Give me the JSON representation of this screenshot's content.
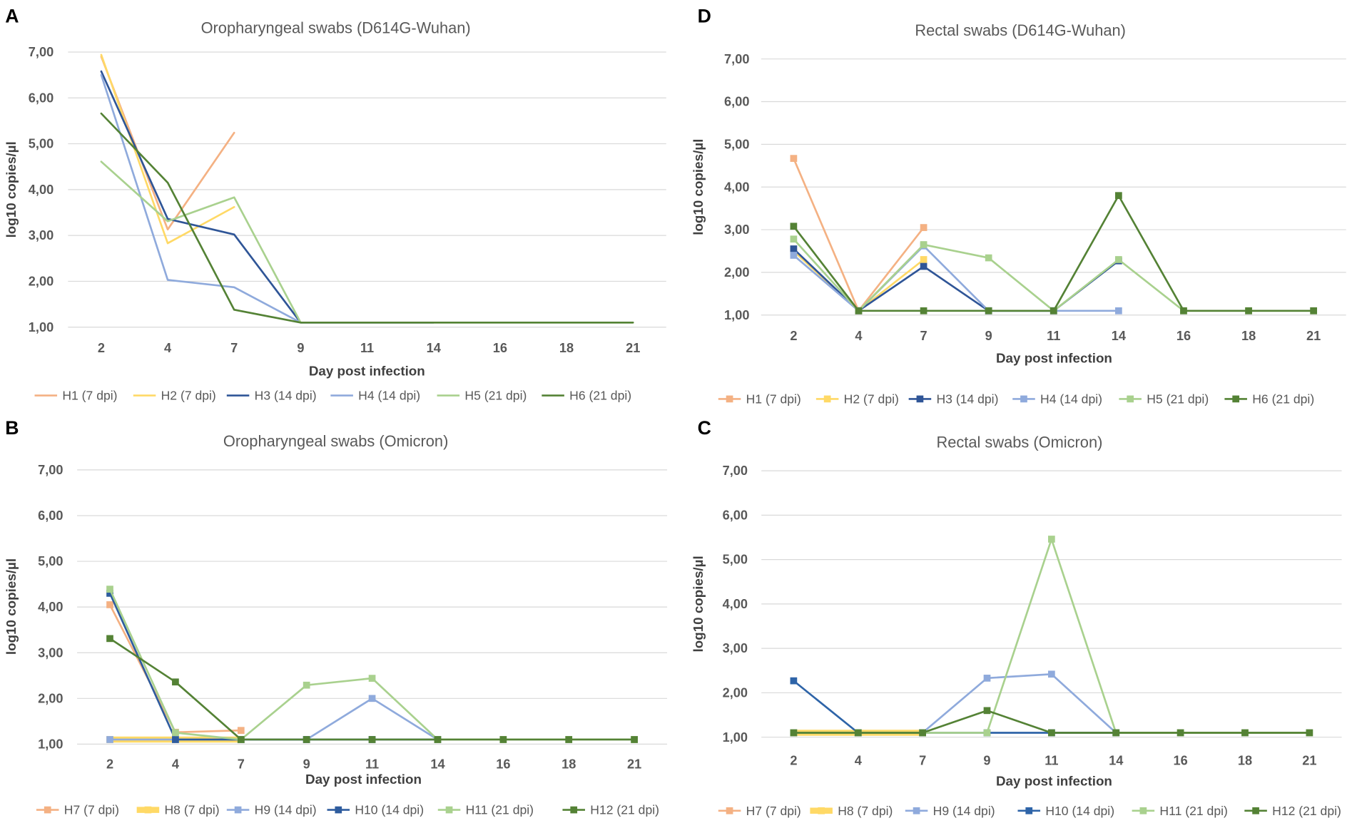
{
  "chart_data": [
    {
      "panel": "A",
      "type": "line",
      "title": "Oropharyngeal swabs (D614G-Wuhan)",
      "xlabel": "Day post infection",
      "ylabel": "log10 copies/µl",
      "categories": [
        "2",
        "4",
        "7",
        "9",
        "11",
        "14",
        "16",
        "18",
        "21"
      ],
      "ylim": [
        1,
        7
      ],
      "y_tick_labels": [
        "1,00",
        "2,00",
        "3,00",
        "4,00",
        "5,00",
        "6,00",
        "7,00"
      ],
      "legend": "bottom",
      "series": [
        {
          "name": "H1 (7 dpi)",
          "color": "#F4B183",
          "values": [
            6.9,
            3.13,
            5.24,
            null,
            null,
            null,
            null,
            null,
            null
          ]
        },
        {
          "name": "H2 (7 dpi)",
          "color": "#FFD966",
          "values": [
            6.94,
            2.83,
            3.62,
            null,
            null,
            null,
            null,
            null,
            null
          ]
        },
        {
          "name": "H3 (14 dpi)",
          "color": "#2F5597",
          "values": [
            6.58,
            3.36,
            3.02,
            1.1,
            1.1,
            1.1,
            null,
            null,
            null
          ]
        },
        {
          "name": "H4 (14 dpi)",
          "color": "#8FAADC",
          "values": [
            6.5,
            2.03,
            1.87,
            1.1,
            1.1,
            1.1,
            null,
            null,
            null
          ]
        },
        {
          "name": "H5 (21 dpi)",
          "color": "#A9D18E",
          "values": [
            4.61,
            3.31,
            3.83,
            1.1,
            1.1,
            1.1,
            1.1,
            1.1,
            1.1
          ]
        },
        {
          "name": "H6 (21 dpi)",
          "color": "#548235",
          "values": [
            5.66,
            4.15,
            1.38,
            1.1,
            1.1,
            1.1,
            1.1,
            1.1,
            1.1
          ]
        }
      ]
    },
    {
      "panel": "D",
      "type": "line",
      "title": "Rectal swabs (D614G-Wuhan)",
      "xlabel": "Day post infection",
      "ylabel": "log10 copies/µl",
      "categories": [
        "2",
        "4",
        "7",
        "9",
        "11",
        "14",
        "16",
        "18",
        "21"
      ],
      "ylim": [
        1,
        7
      ],
      "y_tick_labels": [
        "1,00",
        "2,00",
        "3,00",
        "4,00",
        "5,00",
        "6,00",
        "7,00"
      ],
      "legend": "bottom",
      "series": [
        {
          "name": "H1 (7 dpi)",
          "color": "#F4B183",
          "values": [
            4.67,
            1.1,
            3.05,
            null,
            null,
            null,
            null,
            null,
            null
          ]
        },
        {
          "name": "H2 (7 dpi)",
          "color": "#FFD966",
          "values": [
            2.5,
            1.1,
            2.3,
            null,
            null,
            null,
            null,
            null,
            null
          ]
        },
        {
          "name": "H3 (14 dpi)",
          "color": "#2F5597",
          "values": [
            2.55,
            1.1,
            2.14,
            1.1,
            1.1,
            2.27,
            null,
            null,
            null
          ]
        },
        {
          "name": "H4 (14 dpi)",
          "color": "#8FAADC",
          "values": [
            2.4,
            1.1,
            2.62,
            1.1,
            1.1,
            1.1,
            null,
            null,
            null
          ]
        },
        {
          "name": "H5 (21 dpi)",
          "color": "#A9D18E",
          "values": [
            2.78,
            1.1,
            2.65,
            2.34,
            1.1,
            2.3,
            1.1,
            1.1,
            1.1
          ]
        },
        {
          "name": "H6 (21 dpi)",
          "color": "#548235",
          "values": [
            3.08,
            1.1,
            1.1,
            1.1,
            1.1,
            3.8,
            1.1,
            1.1,
            1.1
          ]
        }
      ]
    },
    {
      "panel": "B",
      "type": "line",
      "title": "Oropharyngeal swabs (Omicron)",
      "xlabel": "Day post infection",
      "ylabel": "log10 copies/µl",
      "categories": [
        "2",
        "4",
        "7",
        "9",
        "11",
        "14",
        "16",
        "18",
        "21"
      ],
      "ylim": [
        1,
        7
      ],
      "y_tick_labels": [
        "1,00",
        "2,00",
        "3,00",
        "4,00",
        "5,00",
        "6,00",
        "7,00"
      ],
      "legend": "bottom",
      "series": [
        {
          "name": "H7 (7 dpi)",
          "color": "#F4B183",
          "values": [
            4.05,
            1.26,
            1.3,
            null,
            null,
            null,
            null,
            null,
            null
          ]
        },
        {
          "name": "H8 (7 dpi)",
          "color": "#FFD966",
          "values": [
            1.1,
            1.1,
            1.1,
            null,
            null,
            null,
            null,
            null,
            null
          ]
        },
        {
          "name": "H9 (14 dpi)",
          "color": "#8FAADC",
          "values": [
            1.1,
            1.1,
            1.1,
            1.1,
            2.0,
            1.1,
            null,
            null,
            null
          ]
        },
        {
          "name": "H10 (14 dpi)",
          "color": "#2E5C9E",
          "values": [
            4.3,
            1.1,
            1.1,
            1.1,
            1.1,
            1.1,
            null,
            null,
            null
          ]
        },
        {
          "name": "H11 (21 dpi)",
          "color": "#A9D18E",
          "values": [
            4.39,
            1.25,
            1.1,
            2.29,
            2.44,
            1.1,
            1.1,
            1.1,
            1.1
          ]
        },
        {
          "name": "H12 (21 dpi)",
          "color": "#548235",
          "values": [
            3.31,
            2.36,
            1.1,
            1.1,
            1.1,
            1.1,
            1.1,
            1.1,
            1.1
          ]
        }
      ]
    },
    {
      "panel": "C",
      "type": "line",
      "title": "Rectal swabs (Omicron)",
      "xlabel": "Day post infection",
      "ylabel": "log10 copies/µl",
      "categories": [
        "2",
        "4",
        "7",
        "9",
        "11",
        "14",
        "16",
        "18",
        "21"
      ],
      "ylim": [
        1,
        7
      ],
      "y_tick_labels": [
        "1,00",
        "2,00",
        "3,00",
        "4,00",
        "5,00",
        "6,00",
        "7,00"
      ],
      "legend": "bottom",
      "series": [
        {
          "name": "H7 (7 dpi)",
          "color": "#F4B183",
          "values": [
            1.1,
            1.1,
            1.1,
            null,
            null,
            null,
            null,
            null,
            null
          ]
        },
        {
          "name": "H8 (7 dpi)",
          "color": "#FFD966",
          "values": [
            1.1,
            1.1,
            1.1,
            null,
            null,
            null,
            null,
            null,
            null
          ]
        },
        {
          "name": "H9 (14 dpi)",
          "color": "#8FAADC",
          "values": [
            1.1,
            1.1,
            1.1,
            2.33,
            2.42,
            1.1,
            null,
            null,
            null
          ]
        },
        {
          "name": "H10 (14 dpi)",
          "color": "#2E64A8",
          "values": [
            2.27,
            1.1,
            1.1,
            1.1,
            1.1,
            1.1,
            null,
            null,
            null
          ]
        },
        {
          "name": "H11 (21 dpi)",
          "color": "#A9D18E",
          "values": [
            1.1,
            1.1,
            1.1,
            1.1,
            5.46,
            1.1,
            1.1,
            1.1,
            1.1
          ]
        },
        {
          "name": "H12 (21 dpi)",
          "color": "#548235",
          "values": [
            1.1,
            1.1,
            1.1,
            1.6,
            1.1,
            1.1,
            1.1,
            1.1,
            1.1
          ]
        }
      ]
    }
  ]
}
